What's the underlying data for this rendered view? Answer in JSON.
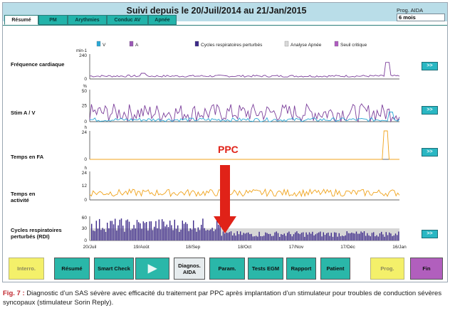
{
  "window": {
    "title": "Suivi depuis le 20/Juil/2014 au 21/Jan/2015",
    "prog_label": "Prog. AIDA",
    "prog_value": "6 mois"
  },
  "tabs": [
    {
      "label": "Résumé",
      "active": true
    },
    {
      "label": "PM",
      "active": false
    },
    {
      "label": "Arythmies",
      "active": false
    },
    {
      "label": "Conduc AV",
      "active": false
    },
    {
      "label": "Apnée",
      "active": false
    }
  ],
  "legend": [
    {
      "label": "V",
      "color": "#2aa8d6"
    },
    {
      "label": "A",
      "color": "#9b59b6"
    },
    {
      "label": "Cycles respiratoires perturbés",
      "color": "#3d2a8a"
    },
    {
      "label": "Analyse Apnée",
      "color": "#d9d9d9"
    },
    {
      "label": "Seuil critique",
      "color": "#b05cc1"
    }
  ],
  "rows": [
    {
      "label": "Fréquence cardiaque",
      "unit": "min-1",
      "yticks": [
        "240",
        "0"
      ]
    },
    {
      "label": "Stim A / V",
      "unit": "%",
      "yticks": [
        "50",
        "25",
        "0"
      ]
    },
    {
      "label": "Temps en FA",
      "unit": "h",
      "yticks": [
        "24",
        "0"
      ]
    },
    {
      "label": "Temps en activité",
      "unit": "h",
      "yticks": [
        "24",
        "12",
        "0"
      ]
    },
    {
      "label": "Cycles respiratoires perturbés (RDI)",
      "unit": "",
      "yticks": [
        "60",
        "30",
        "0"
      ]
    }
  ],
  "more_button_label": ">>",
  "annotation": "PPC",
  "chart_data": {
    "type": "line",
    "x_ticks": [
      "20/Juil",
      "19/Août",
      "18/Sep",
      "18/Oct",
      "17/Nov",
      "17/Déc",
      "16/Jan"
    ],
    "series": [
      {
        "name": "Fréquence cardiaque",
        "axis_max": 240,
        "base": 28,
        "noise": 10,
        "peaks": [
          [
            0.96,
            160
          ],
          [
            0.17,
            55
          ]
        ],
        "color": "#7c3f9b"
      },
      {
        "name": "A",
        "axis_max": 50,
        "base": 14,
        "noise": 14,
        "peaks": [],
        "color": "#7c3f9b"
      },
      {
        "name": "V",
        "axis_max": 50,
        "base": 3,
        "noise": 3,
        "peaks": [
          [
            0.97,
            15
          ]
        ],
        "color": "#2aa8d6"
      },
      {
        "name": "Temps en FA",
        "axis_max": 24,
        "base": 0,
        "noise": 0,
        "peaks": [
          [
            0.955,
            24
          ]
        ],
        "color": "#f0a31c"
      },
      {
        "name": "Temps en activité",
        "axis_max": 24,
        "base": 6,
        "noise": 3,
        "peaks": [],
        "color": "#f0a31c"
      },
      {
        "name": "RDI",
        "axis_max": 60,
        "before_ppc": 38,
        "after_ppc": 16,
        "ppc_position": 0.42,
        "color": "#3d2a8a"
      }
    ]
  },
  "toolbar": [
    {
      "label": "Interro.",
      "style": "yellow"
    },
    {
      "label": "Résumé",
      "style": "teal"
    },
    {
      "label": "Smart Check",
      "style": "teal"
    },
    {
      "label": "▶",
      "style": "teal"
    },
    {
      "label": "Diagnos. AIDA",
      "style": "grey"
    },
    {
      "label": "Param.",
      "style": "teal"
    },
    {
      "label": "Tests EGM",
      "style": "teal"
    },
    {
      "label": "Rapport",
      "style": "teal"
    },
    {
      "label": "Patient",
      "style": "teal"
    },
    {
      "label": "Prog.",
      "style": "yellow"
    },
    {
      "label": "Fin",
      "style": "purple"
    }
  ],
  "caption": {
    "fig": "Fig. 7 :",
    "text": "Diagnostic d’un SAS sévère avec efficacité du traitement par PPC après implantation d’un stimulateur pour troubles de conduction sévères syncopaux (stimulateur Sorin Reply)."
  }
}
